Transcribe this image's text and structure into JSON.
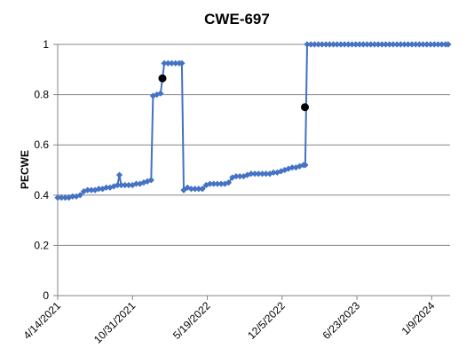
{
  "chart_data": {
    "type": "line",
    "title": "CWE-697",
    "xlabel": "",
    "ylabel": "PECWE",
    "ylim": [
      0,
      1
    ],
    "yticks": [
      "0",
      "0.2",
      "0.4",
      "0.6",
      "0.8",
      "1"
    ],
    "xlim": [
      "2021-04-14",
      "2024-02-27"
    ],
    "xticks": [
      "4/14/2021",
      "10/31/2021",
      "5/19/2022",
      "12/5/2022",
      "6/23/2023",
      "1/9/2024"
    ],
    "xtick_dates": [
      "2021-04-14",
      "2021-10-31",
      "2022-05-19",
      "2022-12-05",
      "2023-06-23",
      "2024-01-09"
    ],
    "grid": "horizontal",
    "legend": "none",
    "series": [
      {
        "color": "#4472C4",
        "marker": "diamond",
        "points": [
          [
            "2021-04-14",
            0.39
          ],
          [
            "2021-04-24",
            0.39
          ],
          [
            "2021-05-04",
            0.39
          ],
          [
            "2021-05-14",
            0.39
          ],
          [
            "2021-05-24",
            0.395
          ],
          [
            "2021-06-03",
            0.395
          ],
          [
            "2021-06-13",
            0.4
          ],
          [
            "2021-06-23",
            0.415
          ],
          [
            "2021-07-03",
            0.42
          ],
          [
            "2021-07-13",
            0.42
          ],
          [
            "2021-07-23",
            0.42
          ],
          [
            "2021-08-02",
            0.425
          ],
          [
            "2021-08-12",
            0.425
          ],
          [
            "2021-08-22",
            0.43
          ],
          [
            "2021-09-01",
            0.43
          ],
          [
            "2021-09-11",
            0.435
          ],
          [
            "2021-09-21",
            0.44
          ],
          [
            "2021-09-26",
            0.48
          ],
          [
            "2021-10-01",
            0.44
          ],
          [
            "2021-10-11",
            0.44
          ],
          [
            "2021-10-21",
            0.44
          ],
          [
            "2021-10-31",
            0.44
          ],
          [
            "2021-11-10",
            0.445
          ],
          [
            "2021-11-20",
            0.445
          ],
          [
            "2021-11-30",
            0.45
          ],
          [
            "2021-12-10",
            0.455
          ],
          [
            "2021-12-20",
            0.46
          ],
          [
            "2021-12-25",
            0.795
          ],
          [
            "2022-01-04",
            0.8
          ],
          [
            "2022-01-14",
            0.805
          ],
          [
            "2022-01-24",
            0.925
          ],
          [
            "2022-02-03",
            0.925
          ],
          [
            "2022-02-13",
            0.925
          ],
          [
            "2022-02-23",
            0.925
          ],
          [
            "2022-03-05",
            0.925
          ],
          [
            "2022-03-12",
            0.925
          ],
          [
            "2022-03-17",
            0.42
          ],
          [
            "2022-03-27",
            0.43
          ],
          [
            "2022-04-06",
            0.425
          ],
          [
            "2022-04-16",
            0.425
          ],
          [
            "2022-04-26",
            0.425
          ],
          [
            "2022-05-06",
            0.425
          ],
          [
            "2022-05-16",
            0.44
          ],
          [
            "2022-05-26",
            0.445
          ],
          [
            "2022-06-05",
            0.445
          ],
          [
            "2022-06-15",
            0.445
          ],
          [
            "2022-06-25",
            0.445
          ],
          [
            "2022-07-05",
            0.445
          ],
          [
            "2022-07-15",
            0.45
          ],
          [
            "2022-07-25",
            0.47
          ],
          [
            "2022-08-04",
            0.475
          ],
          [
            "2022-08-14",
            0.475
          ],
          [
            "2022-08-24",
            0.475
          ],
          [
            "2022-09-03",
            0.48
          ],
          [
            "2022-09-13",
            0.485
          ],
          [
            "2022-09-23",
            0.485
          ],
          [
            "2022-10-03",
            0.485
          ],
          [
            "2022-10-13",
            0.485
          ],
          [
            "2022-10-23",
            0.485
          ],
          [
            "2022-11-02",
            0.485
          ],
          [
            "2022-11-12",
            0.49
          ],
          [
            "2022-11-22",
            0.49
          ],
          [
            "2022-12-02",
            0.495
          ],
          [
            "2022-12-12",
            0.5
          ],
          [
            "2022-12-22",
            0.505
          ],
          [
            "2023-01-01",
            0.51
          ],
          [
            "2023-01-11",
            0.51
          ],
          [
            "2023-01-21",
            0.515
          ],
          [
            "2023-01-31",
            0.52
          ],
          [
            "2023-02-05",
            0.52
          ],
          [
            "2023-02-10",
            1.0
          ],
          [
            "2023-02-20",
            1.0
          ],
          [
            "2023-03-02",
            1.0
          ],
          [
            "2023-03-12",
            1.0
          ],
          [
            "2023-03-22",
            1.0
          ],
          [
            "2023-04-01",
            1.0
          ],
          [
            "2023-04-11",
            1.0
          ],
          [
            "2023-04-21",
            1.0
          ],
          [
            "2023-05-01",
            1.0
          ],
          [
            "2023-05-11",
            1.0
          ],
          [
            "2023-05-21",
            1.0
          ],
          [
            "2023-05-31",
            1.0
          ],
          [
            "2023-06-10",
            1.0
          ],
          [
            "2023-06-20",
            1.0
          ],
          [
            "2023-06-30",
            1.0
          ],
          [
            "2023-07-10",
            1.0
          ],
          [
            "2023-07-20",
            1.0
          ],
          [
            "2023-07-30",
            1.0
          ],
          [
            "2023-08-09",
            1.0
          ],
          [
            "2023-08-19",
            1.0
          ],
          [
            "2023-08-29",
            1.0
          ],
          [
            "2023-09-08",
            1.0
          ],
          [
            "2023-09-18",
            1.0
          ],
          [
            "2023-09-28",
            1.0
          ],
          [
            "2023-10-08",
            1.0
          ],
          [
            "2023-10-18",
            1.0
          ],
          [
            "2023-10-28",
            1.0
          ],
          [
            "2023-11-07",
            1.0
          ],
          [
            "2023-11-17",
            1.0
          ],
          [
            "2023-11-27",
            1.0
          ],
          [
            "2023-12-07",
            1.0
          ],
          [
            "2023-12-17",
            1.0
          ],
          [
            "2023-12-27",
            1.0
          ],
          [
            "2024-01-06",
            1.0
          ],
          [
            "2024-01-16",
            1.0
          ],
          [
            "2024-01-26",
            1.0
          ],
          [
            "2024-02-05",
            1.0
          ],
          [
            "2024-02-15",
            1.0
          ],
          [
            "2024-02-22",
            1.0
          ]
        ]
      },
      {
        "color": "#000000",
        "marker": "circle",
        "points": [
          [
            "2022-01-19",
            0.865
          ],
          [
            "2023-02-04",
            0.75
          ]
        ]
      }
    ]
  }
}
